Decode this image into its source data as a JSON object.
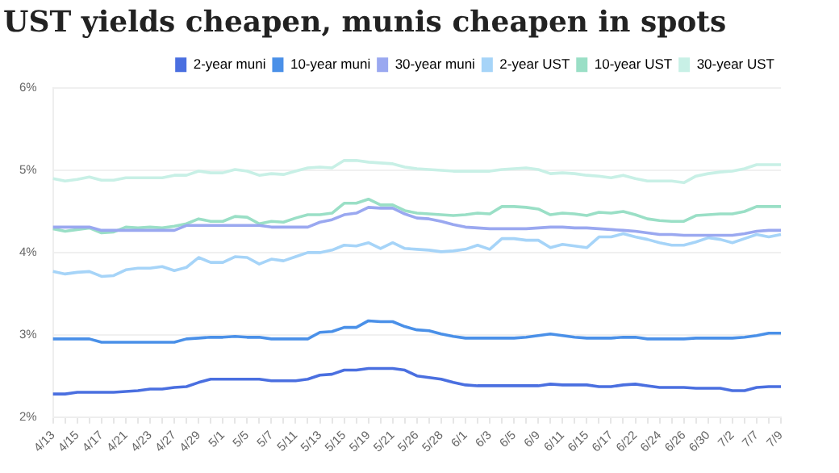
{
  "chart_data": {
    "type": "line",
    "title": "UST yields cheapen, munis cheapen in spots",
    "categories": [
      "4/13",
      null,
      "4/15",
      null,
      "4/17",
      null,
      "4/21",
      null,
      "4/23",
      null,
      "4/27",
      null,
      "4/29",
      null,
      "5/1",
      null,
      "5/5",
      null,
      "5/7",
      null,
      "5/11",
      null,
      "5/13",
      null,
      "5/15",
      null,
      "5/19",
      null,
      "5/21",
      null,
      "5/26",
      null,
      "5/28",
      null,
      "6/1",
      null,
      "6/3",
      null,
      "6/5",
      null,
      "6/9",
      null,
      "6/11",
      null,
      "6/15",
      null,
      "6/17",
      null,
      "6/22",
      null,
      "6/24",
      null,
      "6/26",
      null,
      "6/30",
      null,
      "7/2",
      null,
      "7/7",
      null,
      "7/9"
    ],
    "series": [
      {
        "name": "2-year muni",
        "color": "#4a6fe0",
        "values": [
          2.28,
          2.28,
          2.3,
          2.3,
          2.3,
          2.3,
          2.31,
          2.32,
          2.34,
          2.34,
          2.36,
          2.37,
          2.42,
          2.46,
          2.46,
          2.46,
          2.46,
          2.46,
          2.44,
          2.44,
          2.44,
          2.46,
          2.51,
          2.52,
          2.57,
          2.57,
          2.59,
          2.59,
          2.59,
          2.57,
          2.5,
          2.48,
          2.46,
          2.42,
          2.39,
          2.38,
          2.38,
          2.38,
          2.38,
          2.38,
          2.38,
          2.4,
          2.39,
          2.39,
          2.39,
          2.37,
          2.37,
          2.39,
          2.4,
          2.38,
          2.36,
          2.36,
          2.36,
          2.35,
          2.35,
          2.35,
          2.32,
          2.32,
          2.36,
          2.37,
          2.37
        ]
      },
      {
        "name": "10-year muni",
        "color": "#4a90e8",
        "values": [
          2.95,
          2.95,
          2.95,
          2.95,
          2.91,
          2.91,
          2.91,
          2.91,
          2.91,
          2.91,
          2.91,
          2.95,
          2.96,
          2.97,
          2.97,
          2.98,
          2.97,
          2.97,
          2.95,
          2.95,
          2.95,
          2.95,
          3.03,
          3.04,
          3.09,
          3.09,
          3.17,
          3.16,
          3.16,
          3.1,
          3.06,
          3.05,
          3.01,
          2.98,
          2.96,
          2.96,
          2.96,
          2.96,
          2.96,
          2.97,
          2.99,
          3.01,
          2.99,
          2.97,
          2.96,
          2.96,
          2.96,
          2.97,
          2.97,
          2.95,
          2.95,
          2.95,
          2.95,
          2.96,
          2.96,
          2.96,
          2.96,
          2.97,
          2.99,
          3.02,
          3.02
        ]
      },
      {
        "name": "30-year muni",
        "color": "#9aa8f0",
        "values": [
          4.31,
          4.31,
          4.31,
          4.31,
          4.27,
          4.27,
          4.27,
          4.27,
          4.27,
          4.27,
          4.27,
          4.33,
          4.33,
          4.33,
          4.33,
          4.33,
          4.33,
          4.33,
          4.31,
          4.31,
          4.31,
          4.31,
          4.37,
          4.4,
          4.46,
          4.48,
          4.55,
          4.54,
          4.54,
          4.47,
          4.42,
          4.41,
          4.38,
          4.34,
          4.31,
          4.3,
          4.29,
          4.29,
          4.29,
          4.29,
          4.3,
          4.31,
          4.31,
          4.3,
          4.3,
          4.29,
          4.28,
          4.27,
          4.26,
          4.24,
          4.22,
          4.22,
          4.21,
          4.21,
          4.21,
          4.21,
          4.21,
          4.23,
          4.26,
          4.27,
          4.27
        ]
      },
      {
        "name": "2-year UST",
        "color": "#a6d4f8",
        "values": [
          3.77,
          3.74,
          3.76,
          3.77,
          3.71,
          3.72,
          3.79,
          3.81,
          3.81,
          3.83,
          3.78,
          3.82,
          3.94,
          3.88,
          3.88,
          3.95,
          3.94,
          3.86,
          3.92,
          3.9,
          3.95,
          4.0,
          4.0,
          4.03,
          4.09,
          4.08,
          4.12,
          4.05,
          4.12,
          4.05,
          4.04,
          4.03,
          4.01,
          4.02,
          4.04,
          4.09,
          4.04,
          4.17,
          4.17,
          4.15,
          4.15,
          4.06,
          4.1,
          4.08,
          4.06,
          4.19,
          4.19,
          4.23,
          4.19,
          4.16,
          4.12,
          4.09,
          4.09,
          4.13,
          4.18,
          4.16,
          4.12,
          4.17,
          4.22,
          4.19,
          4.22
        ]
      },
      {
        "name": "10-year UST",
        "color": "#9adfc6",
        "values": [
          4.29,
          4.26,
          4.28,
          4.3,
          4.24,
          4.25,
          4.31,
          4.3,
          4.31,
          4.3,
          4.32,
          4.35,
          4.41,
          4.38,
          4.38,
          4.44,
          4.43,
          4.35,
          4.38,
          4.37,
          4.42,
          4.46,
          4.46,
          4.48,
          4.6,
          4.6,
          4.65,
          4.58,
          4.58,
          4.51,
          4.48,
          4.47,
          4.46,
          4.45,
          4.46,
          4.48,
          4.47,
          4.56,
          4.56,
          4.55,
          4.53,
          4.46,
          4.48,
          4.47,
          4.45,
          4.49,
          4.48,
          4.5,
          4.46,
          4.41,
          4.39,
          4.38,
          4.38,
          4.45,
          4.46,
          4.47,
          4.47,
          4.5,
          4.56,
          4.56,
          4.56
        ]
      },
      {
        "name": "30-year UST",
        "color": "#c8f0e6",
        "values": [
          4.9,
          4.87,
          4.89,
          4.92,
          4.88,
          4.88,
          4.91,
          4.91,
          4.91,
          4.91,
          4.94,
          4.94,
          4.99,
          4.97,
          4.97,
          5.01,
          4.99,
          4.94,
          4.96,
          4.95,
          4.99,
          5.03,
          5.04,
          5.03,
          5.12,
          5.12,
          5.1,
          5.09,
          5.08,
          5.04,
          5.02,
          5.01,
          5.0,
          4.99,
          4.99,
          4.99,
          4.99,
          5.01,
          5.02,
          5.03,
          5.01,
          4.96,
          4.97,
          4.96,
          4.94,
          4.93,
          4.91,
          4.94,
          4.9,
          4.87,
          4.87,
          4.87,
          4.85,
          4.93,
          4.96,
          4.98,
          4.99,
          5.02,
          5.07,
          5.07,
          5.07
        ]
      }
    ],
    "ylim": [
      2,
      6
    ],
    "yticks": [
      {
        "value": 2,
        "label": "2%"
      },
      {
        "value": 3,
        "label": "3%"
      },
      {
        "value": 4,
        "label": "4%"
      },
      {
        "value": 5,
        "label": "5%"
      },
      {
        "value": 6,
        "label": "6%"
      }
    ],
    "grid": "y",
    "legend": "top right",
    "marker": "none",
    "line_style": "solid"
  }
}
